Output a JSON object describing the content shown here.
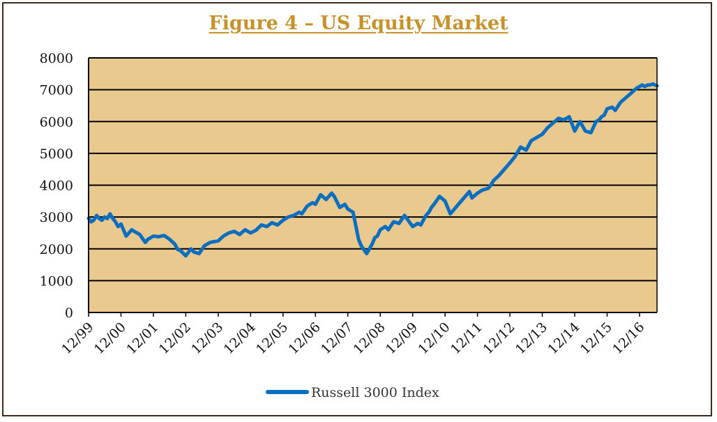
{
  "chart_data": {
    "type": "line",
    "title": "Figure 4 – US Equity Market",
    "xlabel": "",
    "ylabel": "",
    "ylim": [
      0,
      8000
    ],
    "yticks": [
      "0",
      "1000",
      "2000",
      "3000",
      "4000",
      "5000",
      "6000",
      "7000",
      "8000"
    ],
    "xlim": [
      1999.92,
      2017.46
    ],
    "xticks": [
      {
        "label": "12/99",
        "x": 1999.92
      },
      {
        "label": "12/00",
        "x": 2000.92
      },
      {
        "label": "12/01",
        "x": 2001.92
      },
      {
        "label": "12/02",
        "x": 2002.92
      },
      {
        "label": "12/03",
        "x": 2003.92
      },
      {
        "label": "12/04",
        "x": 2004.92
      },
      {
        "label": "12/05",
        "x": 2005.92
      },
      {
        "label": "12/06",
        "x": 2006.92
      },
      {
        "label": "12/07",
        "x": 2007.92
      },
      {
        "label": "12/08",
        "x": 2008.92
      },
      {
        "label": "12/09",
        "x": 2009.92
      },
      {
        "label": "12/10",
        "x": 2010.92
      },
      {
        "label": "12/11",
        "x": 2011.92
      },
      {
        "label": "12/12",
        "x": 2012.92
      },
      {
        "label": "12/13",
        "x": 2013.92
      },
      {
        "label": "12/14",
        "x": 2014.92
      },
      {
        "label": "12/15",
        "x": 2015.92
      },
      {
        "label": "12/16",
        "x": 2016.92
      }
    ],
    "grid": "horizontal",
    "legend": "bottom-center",
    "colors": {
      "plot_bg": "#e9c98e",
      "line": "#0b6fc1",
      "grid": "#000000",
      "title": "#c8922a"
    },
    "series": [
      {
        "name": "Russell 3000 Index",
        "x": [
          1999.92,
          2000.0,
          2000.08,
          2000.17,
          2000.25,
          2000.33,
          2000.42,
          2000.5,
          2000.58,
          2000.67,
          2000.75,
          2000.83,
          2000.92,
          2001.08,
          2001.25,
          2001.33,
          2001.5,
          2001.67,
          2001.75,
          2001.92,
          2002.08,
          2002.25,
          2002.42,
          2002.58,
          2002.67,
          2002.75,
          2002.92,
          2003.08,
          2003.17,
          2003.33,
          2003.5,
          2003.67,
          2003.92,
          2004.08,
          2004.25,
          2004.42,
          2004.58,
          2004.75,
          2004.92,
          2005.08,
          2005.25,
          2005.42,
          2005.58,
          2005.75,
          2005.92,
          2006.08,
          2006.25,
          2006.42,
          2006.5,
          2006.67,
          2006.83,
          2006.92,
          2007.08,
          2007.25,
          2007.42,
          2007.5,
          2007.67,
          2007.83,
          2007.92,
          2008.08,
          2008.25,
          2008.33,
          2008.5,
          2008.67,
          2008.75,
          2008.83,
          2008.92,
          2009.08,
          2009.17,
          2009.33,
          2009.5,
          2009.67,
          2009.92,
          2010.08,
          2010.17,
          2010.33,
          2010.42,
          2010.5,
          2010.58,
          2010.75,
          2010.92,
          2011.08,
          2011.25,
          2011.33,
          2011.5,
          2011.67,
          2011.75,
          2011.92,
          2012.08,
          2012.25,
          2012.33,
          2012.42,
          2012.58,
          2012.75,
          2012.92,
          2013.08,
          2013.25,
          2013.42,
          2013.58,
          2013.75,
          2013.92,
          2014.0,
          2014.08,
          2014.25,
          2014.42,
          2014.58,
          2014.75,
          2014.92,
          2015.08,
          2015.25,
          2015.42,
          2015.58,
          2015.67,
          2015.75,
          2015.83,
          2015.92,
          2016.08,
          2016.17,
          2016.33,
          2016.5,
          2016.67,
          2016.83,
          2016.92,
          2017.0,
          2017.08,
          2017.17,
          2017.25,
          2017.33,
          2017.46
        ],
        "values": [
          2960,
          2850,
          2900,
          3050,
          2950,
          2900,
          3000,
          2950,
          3100,
          2950,
          2850,
          2700,
          2780,
          2400,
          2600,
          2550,
          2450,
          2200,
          2300,
          2400,
          2380,
          2420,
          2300,
          2150,
          1980,
          1950,
          1780,
          2000,
          1900,
          1850,
          2100,
          2200,
          2250,
          2400,
          2500,
          2550,
          2450,
          2600,
          2500,
          2580,
          2750,
          2700,
          2820,
          2750,
          2900,
          3000,
          3050,
          3150,
          3100,
          3350,
          3450,
          3400,
          3700,
          3550,
          3750,
          3650,
          3300,
          3400,
          3250,
          3150,
          2300,
          2100,
          1850,
          2150,
          2350,
          2400,
          2600,
          2700,
          2600,
          2850,
          2800,
          3050,
          2700,
          2800,
          2750,
          3050,
          3150,
          3300,
          3400,
          3650,
          3500,
          3100,
          3300,
          3400,
          3600,
          3800,
          3600,
          3750,
          3850,
          3900,
          4000,
          4150,
          4300,
          4500,
          4700,
          4900,
          5200,
          5100,
          5400,
          5500,
          5600,
          5700,
          5800,
          5950,
          6100,
          6050,
          6150,
          5700,
          6000,
          5700,
          5650,
          6000,
          6050,
          6150,
          6200,
          6400,
          6450,
          6350,
          6600,
          6750,
          6900,
          7050,
          7100,
          7150,
          7100,
          7150,
          7150,
          7180,
          7120
        ],
        "color": "#0b6fc1"
      }
    ]
  }
}
